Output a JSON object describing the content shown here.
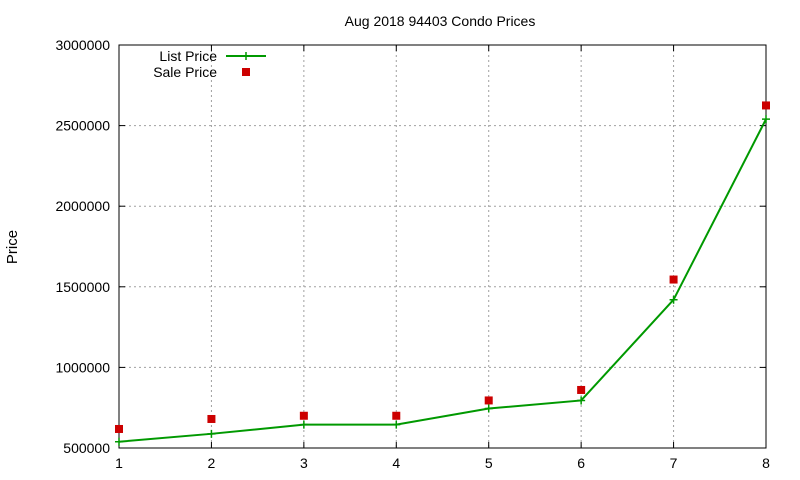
{
  "chart_data": {
    "type": "line",
    "title": "Aug 2018 94403 Condo Prices",
    "xlabel": "",
    "ylabel": "Price",
    "x": [
      1,
      2,
      3,
      4,
      5,
      6,
      7,
      8
    ],
    "xlim": [
      1,
      8
    ],
    "ylim": [
      500000,
      3000000
    ],
    "xticks": [
      1,
      2,
      3,
      4,
      5,
      6,
      7,
      8
    ],
    "yticks": [
      500000,
      1000000,
      1500000,
      2000000,
      2500000,
      3000000
    ],
    "grid": true,
    "legend_position": "top-left",
    "series": [
      {
        "name": "List Price",
        "kind": "line-with-plus-markers",
        "color": "#009900",
        "values": [
          539000,
          588000,
          645000,
          645000,
          745000,
          795000,
          1420000,
          2540000
        ]
      },
      {
        "name": "Sale Price",
        "kind": "square-points",
        "color": "#cc0000",
        "values": [
          618000,
          680000,
          700000,
          700000,
          795000,
          860000,
          1545000,
          2625000
        ]
      }
    ]
  }
}
